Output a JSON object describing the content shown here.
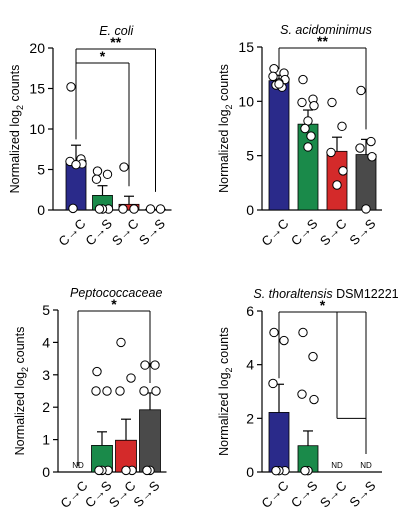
{
  "chart_data": [
    {
      "type": "bar",
      "title": "E. coli",
      "title_style": "italic",
      "ylabel": "Normalized log2 counts",
      "ylim": [
        0,
        20
      ],
      "yticks": [
        "0",
        "5",
        "10",
        "15",
        "20"
      ],
      "categories": [
        "C→C",
        "C→S",
        "S→C",
        "S→S"
      ],
      "values": [
        6.1,
        1.8,
        0.7,
        0.1
      ],
      "errors": [
        1.9,
        1.2,
        1.0,
        0
      ],
      "colors": [
        "#2a2a8a",
        "#1a8a4a",
        "#d42a2a",
        "#4a4a4a"
      ],
      "points": [
        [
          15.2,
          6.3,
          6.0,
          5.7,
          5.6,
          0.2
        ],
        [
          4.8,
          4.4,
          3.8,
          0.1,
          0.1,
          0.1
        ],
        [
          5.3,
          0.1,
          0.1
        ],
        [
          0.1,
          0.1
        ]
      ],
      "nd": [
        "",
        "",
        "",
        ""
      ],
      "significance": [
        {
          "label": "**",
          "from": 0,
          "to": 3
        },
        {
          "label": "*",
          "from": 0,
          "to": 2
        }
      ]
    },
    {
      "type": "bar",
      "title": "S. acidominimus",
      "title_style": "italic",
      "ylabel": "Normalized log2 counts",
      "ylim": [
        0,
        15
      ],
      "yticks": [
        "0",
        "5",
        "10",
        "15"
      ],
      "categories": [
        "C→C",
        "C→S",
        "S→C",
        "S→S"
      ],
      "values": [
        11.9,
        7.9,
        5.4,
        5.1
      ],
      "errors": [
        0.5,
        1.3,
        1.3,
        1.4
      ],
      "colors": [
        "#2a2a8a",
        "#1a8a4a",
        "#d42a2a",
        "#4a4a4a"
      ],
      "points": [
        [
          13.0,
          12.6,
          12.3,
          12.0,
          11.7,
          11.5,
          11.3,
          11.6
        ],
        [
          12.0,
          10.2,
          9.9,
          9.6,
          8.2,
          7.5,
          6.8,
          5.8
        ],
        [
          9.9,
          7.7,
          5.3,
          3.6,
          2.3
        ],
        [
          11.0,
          6.3,
          5.7,
          4.9,
          0.1
        ]
      ],
      "nd": [
        "",
        "",
        "",
        ""
      ],
      "significance": [
        {
          "label": "**",
          "from": 0,
          "to": 3
        }
      ]
    },
    {
      "type": "bar",
      "title": "Peptococcaceae",
      "title_style": "italic",
      "ylabel": "Normalized log2 counts",
      "ylim": [
        0,
        5
      ],
      "yticks": [
        "0",
        "1",
        "2",
        "3",
        "4",
        "5"
      ],
      "categories": [
        "C→C",
        "C→S",
        "S→C",
        "S→S"
      ],
      "values": [
        0,
        0.82,
        0.98,
        1.92
      ],
      "errors": [
        0,
        0.42,
        0.65,
        0.52
      ],
      "colors": [
        "#2a2a8a",
        "#1a8a4a",
        "#d42a2a",
        "#4a4a4a"
      ],
      "points": [
        [],
        [
          3.1,
          2.5,
          2.5,
          0.05,
          0.05,
          0.05
        ],
        [
          4.0,
          2.9,
          2.5,
          0.05,
          0.05
        ],
        [
          3.3,
          3.3,
          2.5,
          2.5,
          0.05,
          0.05
        ]
      ],
      "nd": [
        "ND",
        "",
        "",
        ""
      ],
      "significance": [
        {
          "label": "*",
          "from": 0,
          "to": 3
        }
      ]
    },
    {
      "type": "bar",
      "title": "S. thoraltensis",
      "title_suffix": "DSM12221",
      "title_style": "italic",
      "ylabel": "Normalized log2 counts",
      "ylim": [
        0,
        6
      ],
      "yticks": [
        "0",
        "2",
        "4",
        "6"
      ],
      "categories": [
        "C→C",
        "C→S",
        "S→C",
        "S→S"
      ],
      "values": [
        2.22,
        0.98,
        0,
        0
      ],
      "errors": [
        1.05,
        0.55,
        0,
        0
      ],
      "colors": [
        "#2a2a8a",
        "#1a8a4a",
        "#d42a2a",
        "#4a4a4a"
      ],
      "points": [
        [
          5.2,
          4.9,
          3.3,
          0.05,
          0.05,
          0.05
        ],
        [
          5.2,
          4.3,
          2.9,
          2.7,
          0.05,
          0.05
        ],
        [],
        []
      ],
      "nd": [
        "",
        "",
        "ND",
        "ND"
      ],
      "significance": [
        {
          "label": "*",
          "from": 0,
          "to": 3,
          "branch": 2
        }
      ]
    }
  ]
}
